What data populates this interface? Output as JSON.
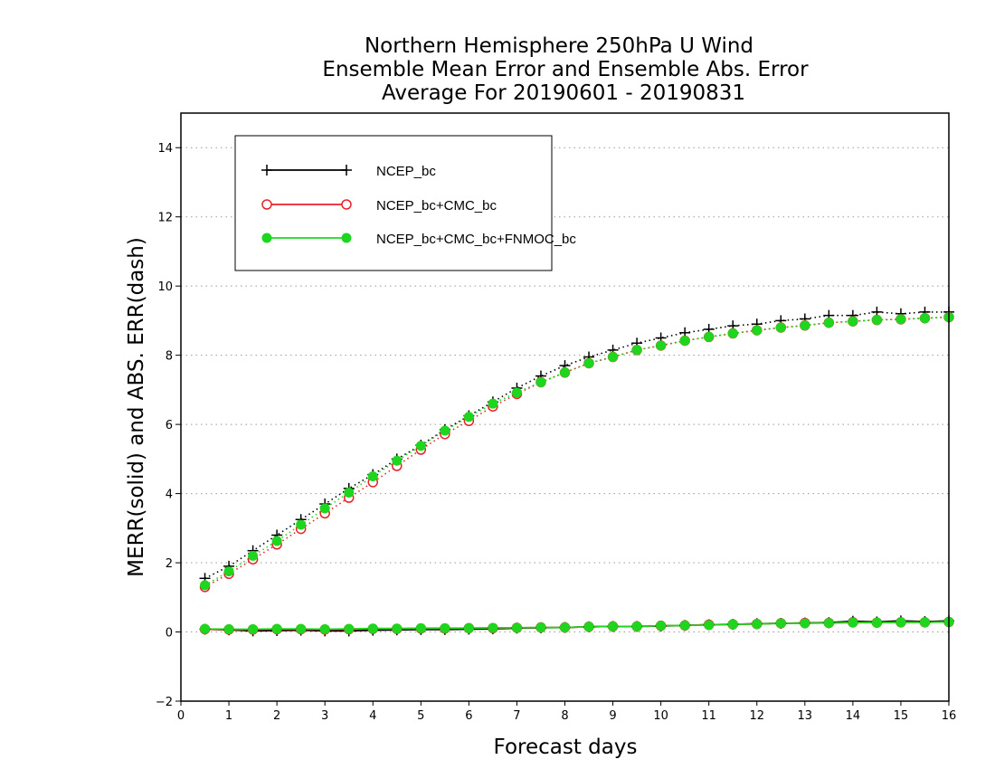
{
  "chart_data": {
    "type": "line",
    "title": [
      "Northern Hemisphere 250hPa U Wind",
      "Ensemble Mean Error and Ensemble Abs. Error",
      "Average For 20190601 - 20190831"
    ],
    "xlabel": "Forecast days",
    "ylabel": "MERR(solid) and ABS. ERR(dash)",
    "xlim": [
      0,
      16
    ],
    "ylim": [
      -2,
      15
    ],
    "xticks": [
      0,
      1,
      2,
      3,
      4,
      5,
      6,
      7,
      8,
      9,
      10,
      11,
      12,
      13,
      14,
      15,
      16
    ],
    "yticks": [
      -2,
      0,
      2,
      4,
      6,
      8,
      10,
      12,
      14
    ],
    "grid": "horizontal dotted",
    "legend_position": "top-left",
    "x": [
      0.5,
      1,
      1.5,
      2,
      2.5,
      3,
      3.5,
      4,
      4.5,
      5,
      5.5,
      6,
      6.5,
      7,
      7.5,
      8,
      8.5,
      9,
      9.5,
      10,
      10.5,
      11,
      11.5,
      12,
      12.5,
      13,
      13.5,
      14,
      14.5,
      15,
      15.5,
      16
    ],
    "series": [
      {
        "name": "NCEP_bc",
        "color": "#000000",
        "marker": "plus",
        "mean_error": [
          0.08,
          0.06,
          0.03,
          0.04,
          0.05,
          0.03,
          0.03,
          0.05,
          0.06,
          0.07,
          0.07,
          0.08,
          0.09,
          0.11,
          0.12,
          0.13,
          0.15,
          0.16,
          0.16,
          0.17,
          0.19,
          0.21,
          0.22,
          0.24,
          0.25,
          0.26,
          0.27,
          0.31,
          0.29,
          0.32,
          0.3,
          0.32
        ],
        "abs_error": [
          1.55,
          1.9,
          2.35,
          2.8,
          3.25,
          3.7,
          4.15,
          4.55,
          5.0,
          5.4,
          5.85,
          6.25,
          6.65,
          7.05,
          7.4,
          7.7,
          7.95,
          8.15,
          8.35,
          8.5,
          8.65,
          8.75,
          8.85,
          8.9,
          9.0,
          9.05,
          9.15,
          9.15,
          9.25,
          9.2,
          9.25,
          9.25
        ]
      },
      {
        "name": "NCEP_bc+CMC_bc",
        "color": "#e8222a",
        "marker": "open-circle",
        "mean_error": [
          0.08,
          0.07,
          0.07,
          0.08,
          0.08,
          0.07,
          0.08,
          0.09,
          0.09,
          0.1,
          0.1,
          0.11,
          0.11,
          0.12,
          0.13,
          0.13,
          0.15,
          0.16,
          0.16,
          0.18,
          0.19,
          0.21,
          0.22,
          0.23,
          0.25,
          0.26,
          0.26,
          0.28,
          0.27,
          0.28,
          0.28,
          0.29
        ],
        "abs_error": [
          1.3,
          1.68,
          2.1,
          2.53,
          2.98,
          3.43,
          3.88,
          4.33,
          4.8,
          5.27,
          5.72,
          6.1,
          6.52,
          6.88,
          7.22,
          7.5,
          7.77,
          7.95,
          8.15,
          8.28,
          8.42,
          8.53,
          8.63,
          8.72,
          8.8,
          8.86,
          8.94,
          8.98,
          9.02,
          9.04,
          9.07,
          9.1
        ]
      },
      {
        "name": "NCEP_bc+CMC_bc+FNMOC_bc",
        "color": "#1fd61f",
        "marker": "filled-circle",
        "mean_error": [
          0.09,
          0.08,
          0.08,
          0.09,
          0.09,
          0.08,
          0.09,
          0.1,
          0.1,
          0.11,
          0.11,
          0.11,
          0.12,
          0.12,
          0.13,
          0.13,
          0.15,
          0.16,
          0.16,
          0.18,
          0.19,
          0.2,
          0.22,
          0.23,
          0.25,
          0.25,
          0.26,
          0.27,
          0.27,
          0.28,
          0.28,
          0.29
        ],
        "abs_error": [
          1.35,
          1.75,
          2.2,
          2.63,
          3.1,
          3.57,
          4.03,
          4.5,
          4.95,
          5.38,
          5.82,
          6.22,
          6.6,
          6.92,
          7.22,
          7.5,
          7.77,
          7.95,
          8.15,
          8.28,
          8.42,
          8.53,
          8.63,
          8.72,
          8.8,
          8.86,
          8.94,
          8.98,
          9.02,
          9.04,
          9.07,
          9.1
        ]
      }
    ]
  }
}
